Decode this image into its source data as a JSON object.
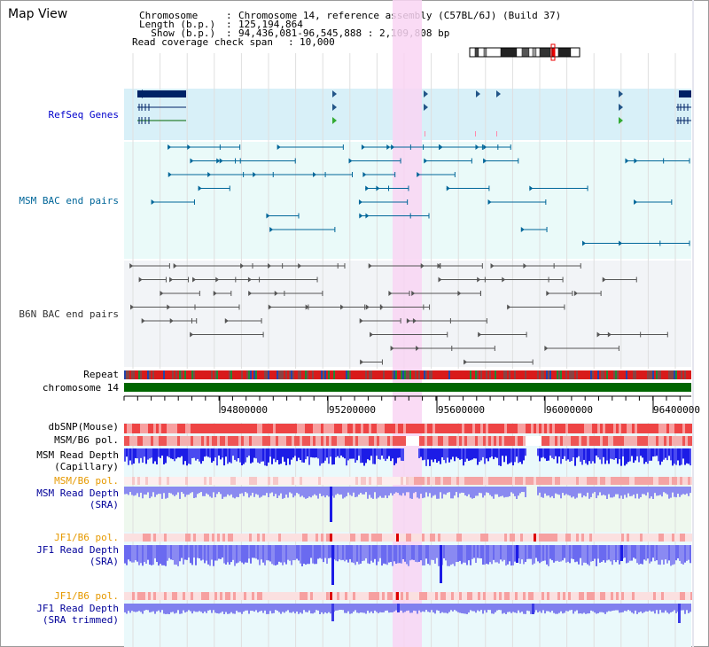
{
  "window": {
    "title": "Map View"
  },
  "header": {
    "chromosome_key": "Chromosome    ",
    "chromosome_value": "Chromosome 14, reference assembly (C57BL/6J) (Build 37)",
    "length_key": "Length (b.p.)",
    "length_value": "125,194,864",
    "show_key": "  Show (b.p.)",
    "show_value": "94,436,081-96,545,888 : 2,109,808 bp",
    "span_key": "Read coverage check span",
    "span_value": "10,000"
  },
  "tracks": {
    "refseq": {
      "label": "RefSeq Genes",
      "color": "#0000cc"
    },
    "msm_bac": {
      "label": "MSM BAC end pairs",
      "color": "#006699"
    },
    "b6n_bac": {
      "label": "B6N BAC end pairs",
      "color": "#333333"
    },
    "repeat": {
      "label": "Repeat"
    },
    "chromosome": {
      "label": "chromosome 14"
    },
    "dbsnp": {
      "label": "dbSNP(Mouse)"
    },
    "msm_b6_pol": {
      "label": "MSM/B6 pol."
    },
    "msm_depth_cap": {
      "label_line1": "MSM Read Depth",
      "label_line2": "(Capillary)"
    },
    "msm_b6_pol_sra": {
      "label": "MSM/B6 pol.",
      "color": "#e69900"
    },
    "msm_depth_sra": {
      "label_line1": "MSM Read Depth",
      "label_line2": "(SRA)",
      "color": "#000099"
    },
    "jf1_b6_pol": {
      "label": "JF1/B6 pol.",
      "color": "#e69900"
    },
    "jf1_depth_sra": {
      "label_line1": "JF1 Read Depth",
      "label_line2": "(SRA)",
      "color": "#000099"
    },
    "jf1_b6_pol_trim": {
      "label": "JF1/B6 pol.",
      "color": "#e69900"
    },
    "jf1_depth_trim": {
      "label_line1": "JF1 Read Depth",
      "label_line2": "(SRA trimmed)",
      "color": "#000099"
    }
  },
  "axis": {
    "ticks": [
      "94800000",
      "95200000",
      "95600000",
      "96000000",
      "96400000"
    ]
  },
  "colors": {
    "highlight": "#f9d5f3",
    "refseq_bg": "#d8f0f8",
    "bac_bg": "#eafaf9",
    "chromosome_bar": "#006600",
    "depth_blue": "#1c1ce6",
    "depth_light": "#8a8af0",
    "pol_red": "#ee3333"
  },
  "ideogram": {
    "name": "chromosome-14-ideogram"
  }
}
